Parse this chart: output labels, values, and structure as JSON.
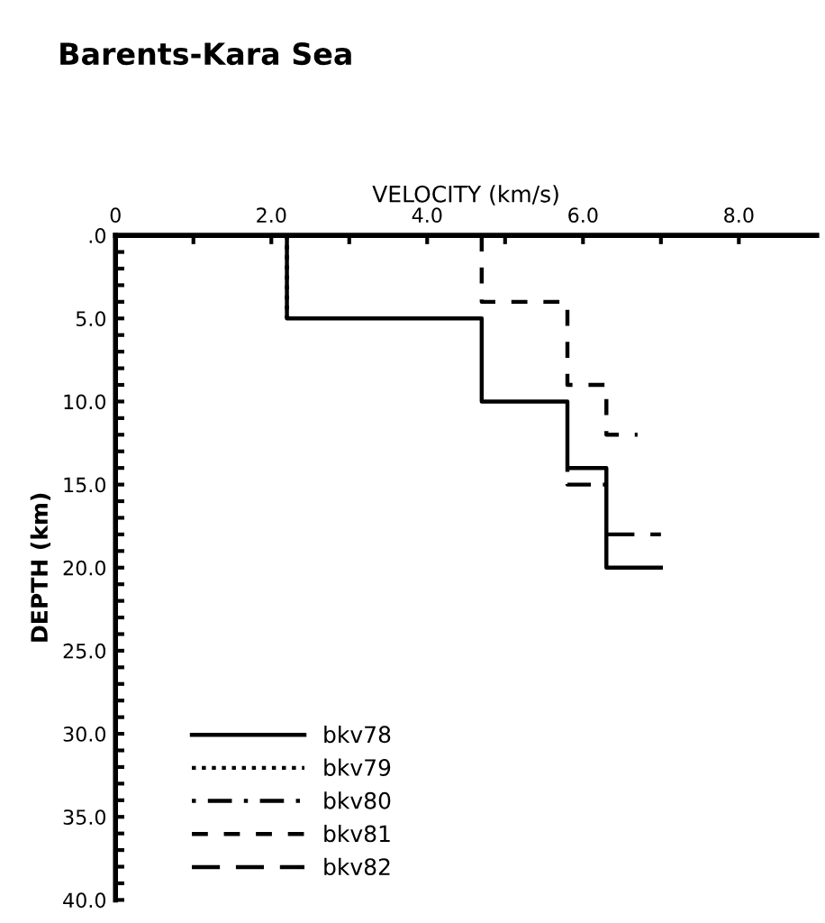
{
  "chart_data": {
    "type": "line",
    "title": "Barents-Kara Sea",
    "xlabel": "VELOCITY (km/s)",
    "ylabel": "DEPTH (km)",
    "xlim": [
      0,
      9
    ],
    "ylim": [
      40,
      0
    ],
    "xticks": [
      {
        "value": 0,
        "label": "0"
      },
      {
        "value": 1,
        "label": null
      },
      {
        "value": 2,
        "label": "2.0"
      },
      {
        "value": 3,
        "label": null
      },
      {
        "value": 4,
        "label": "4.0"
      },
      {
        "value": 5,
        "label": null
      },
      {
        "value": 6,
        "label": "6.0"
      },
      {
        "value": 7,
        "label": null
      },
      {
        "value": 8,
        "label": "8.0"
      }
    ],
    "yticks": [
      {
        "value": 0,
        "label": ".0"
      },
      {
        "value": 1,
        "label": null
      },
      {
        "value": 2,
        "label": null
      },
      {
        "value": 3,
        "label": null
      },
      {
        "value": 4,
        "label": null
      },
      {
        "value": 5,
        "label": "5.0"
      },
      {
        "value": 6,
        "label": null
      },
      {
        "value": 7,
        "label": null
      },
      {
        "value": 8,
        "label": null
      },
      {
        "value": 9,
        "label": null
      },
      {
        "value": 10,
        "label": "10.0"
      },
      {
        "value": 11,
        "label": null
      },
      {
        "value": 12,
        "label": null
      },
      {
        "value": 13,
        "label": null
      },
      {
        "value": 14,
        "label": null
      },
      {
        "value": 15,
        "label": "15.0"
      },
      {
        "value": 16,
        "label": null
      },
      {
        "value": 17,
        "label": null
      },
      {
        "value": 18,
        "label": null
      },
      {
        "value": 19,
        "label": null
      },
      {
        "value": 20,
        "label": "20.0"
      },
      {
        "value": 21,
        "label": null
      },
      {
        "value": 22,
        "label": null
      },
      {
        "value": 23,
        "label": null
      },
      {
        "value": 24,
        "label": null
      },
      {
        "value": 25,
        "label": "25.0"
      },
      {
        "value": 26,
        "label": null
      },
      {
        "value": 27,
        "label": null
      },
      {
        "value": 28,
        "label": null
      },
      {
        "value": 29,
        "label": null
      },
      {
        "value": 30,
        "label": "30.0"
      },
      {
        "value": 31,
        "label": null
      },
      {
        "value": 32,
        "label": null
      },
      {
        "value": 33,
        "label": null
      },
      {
        "value": 34,
        "label": null
      },
      {
        "value": 35,
        "label": "35.0"
      },
      {
        "value": 36,
        "label": null
      },
      {
        "value": 37,
        "label": null
      },
      {
        "value": 38,
        "label": null
      },
      {
        "value": 39,
        "label": null
      },
      {
        "value": 40,
        "label": "40.0"
      }
    ],
    "grid": false,
    "legend": "bottom left",
    "marker": "none",
    "series": [
      {
        "name": "bkv78",
        "color": "#000000",
        "line_style": "solid",
        "x": [
          2.2,
          2.2,
          4.7,
          4.7,
          5.8,
          5.8,
          6.3,
          6.3,
          7.0
        ],
        "values": [
          0,
          5,
          5,
          10,
          10,
          14,
          14,
          20,
          20
        ]
      },
      {
        "name": "bkv79",
        "color": "#000000",
        "line_style": "dotted",
        "x": [
          2.2,
          2.2
        ],
        "values": [
          0,
          5
        ]
      },
      {
        "name": "bkv80",
        "color": "#000000",
        "line_style": "dashdot",
        "x": [
          5.8,
          5.8,
          6.3
        ],
        "values": [
          14,
          15,
          15
        ]
      },
      {
        "name": "bkv81",
        "color": "#000000",
        "line_style": "dashed",
        "x": [
          4.7,
          4.7,
          5.8,
          5.8,
          6.3,
          6.3,
          6.7
        ],
        "values": [
          0,
          4,
          4,
          9,
          9,
          12,
          12
        ]
      },
      {
        "name": "bkv82",
        "color": "#000000",
        "line_style": "longdash",
        "x": [
          6.3,
          7.0
        ],
        "values": [
          18,
          18
        ]
      }
    ]
  }
}
